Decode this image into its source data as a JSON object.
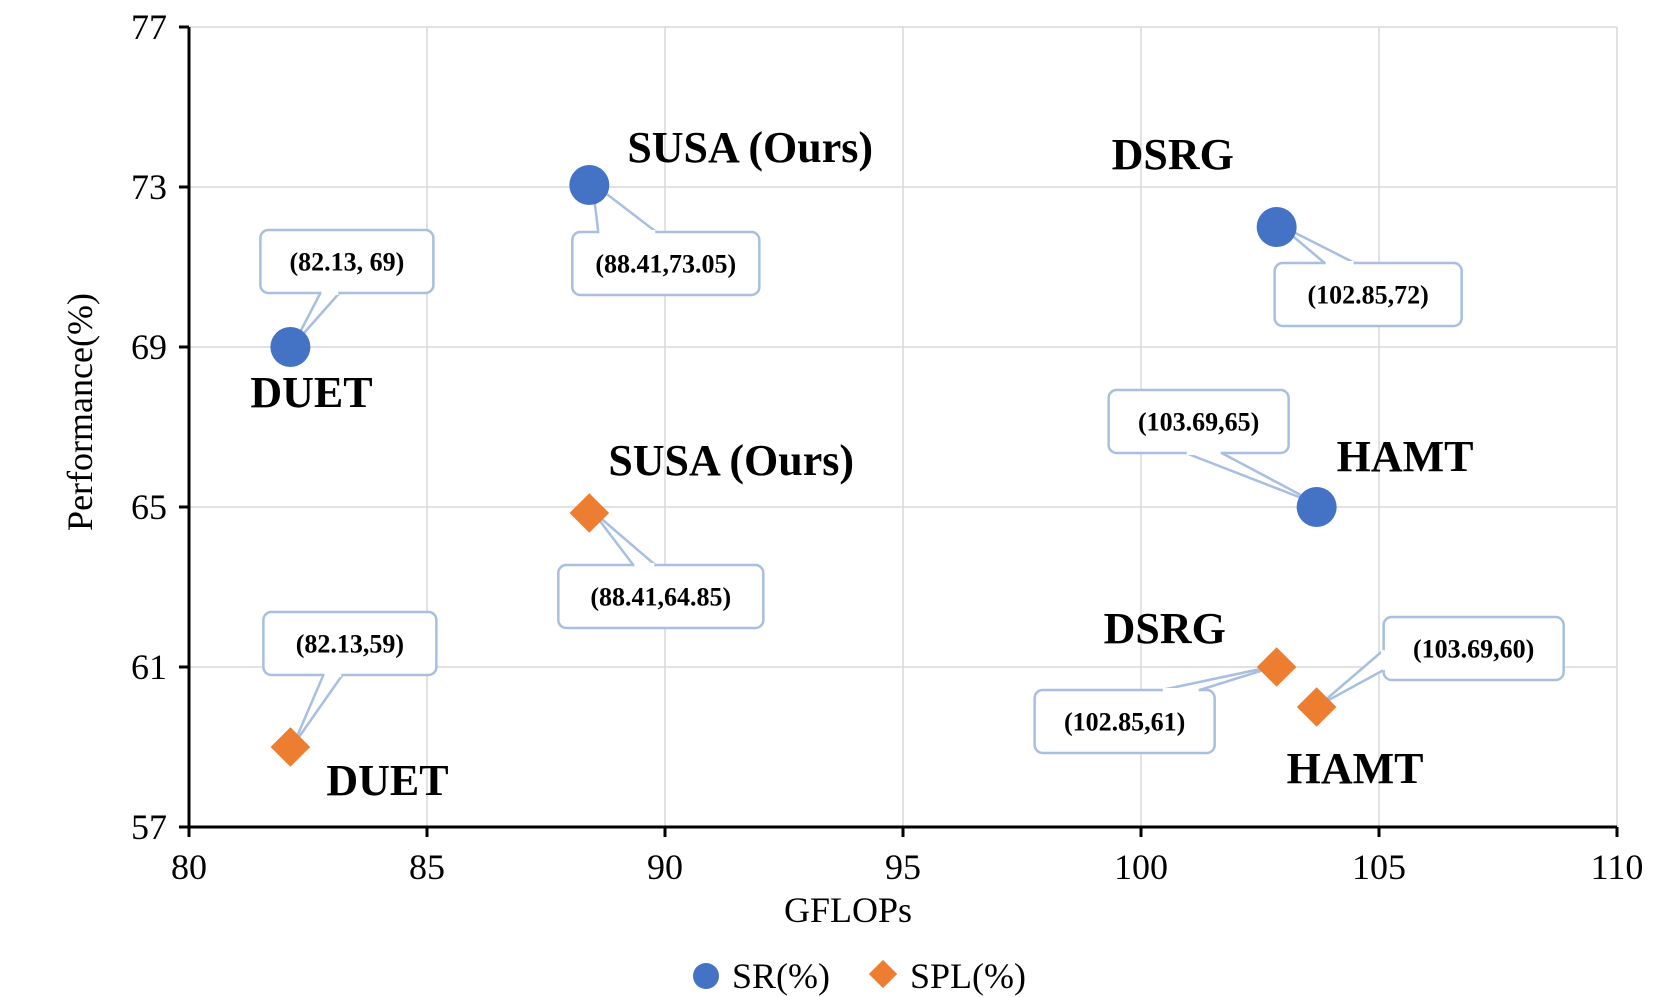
{
  "chart_data": {
    "type": "scatter",
    "xlabel": "GFLOPs",
    "ylabel": "Performance(%)",
    "xlim": [
      80,
      110
    ],
    "ylim": [
      57,
      77
    ],
    "x_ticks": [
      80,
      85,
      90,
      95,
      100,
      105,
      110
    ],
    "y_ticks": [
      57,
      61,
      65,
      69,
      73,
      77
    ],
    "grid": true,
    "legend_position": "bottom",
    "series": [
      {
        "name": "SR(%)",
        "marker": "circle",
        "color": "#4472C4",
        "points": [
          {
            "model": "DUET",
            "x": 82.13,
            "y": 69,
            "callout": "(82.13, 69)"
          },
          {
            "model": "SUSA (Ours)",
            "x": 88.41,
            "y": 73.05,
            "callout": "(88.41,73.05)"
          },
          {
            "model": "DSRG",
            "x": 102.85,
            "y": 72,
            "callout": "(102.85,72)"
          },
          {
            "model": "HAMT",
            "x": 103.69,
            "y": 65,
            "callout": "(103.69,65)"
          }
        ]
      },
      {
        "name": "SPL(%)",
        "marker": "diamond",
        "color": "#ED7D31",
        "points": [
          {
            "model": "DUET",
            "x": 82.13,
            "y": 59,
            "callout": "(82.13,59)"
          },
          {
            "model": "SUSA (Ours)",
            "x": 88.41,
            "y": 64.85,
            "callout": "(88.41,64.85)"
          },
          {
            "model": "DSRG",
            "x": 102.85,
            "y": 61,
            "callout": "(102.85,61)"
          },
          {
            "model": "HAMT",
            "x": 103.69,
            "y": 60,
            "callout": "(103.69,60)"
          }
        ]
      }
    ]
  }
}
